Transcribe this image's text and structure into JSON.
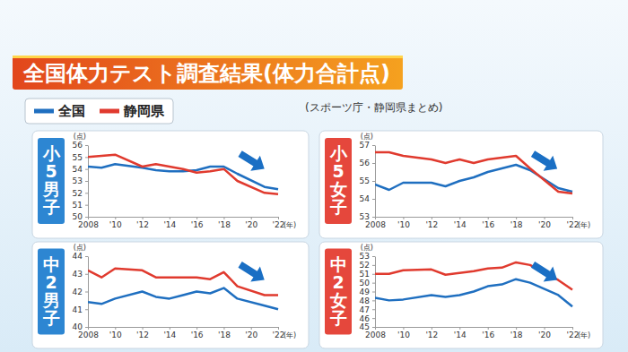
{
  "title": "全国体力テスト調査結果(体力合計点)",
  "subtitle": "(スポーツ庁・静岡県まとめ)",
  "chart_data": [
    {
      "type": "line",
      "title": "小5男子",
      "color": "#2d86d2",
      "legend": "top left",
      "y_label": "(点)",
      "x_label": "(年)",
      "x": [
        2008,
        2009,
        2010,
        2012,
        2013,
        2014,
        2015,
        2016,
        2017,
        2018,
        2019,
        2021,
        2022
      ],
      "xlim": [
        2008,
        2022
      ],
      "xticks": [
        2008,
        {
          "value": 2010,
          "label": "'10"
        },
        {
          "value": 2012,
          "label": "'12"
        },
        {
          "value": 2014,
          "label": "'14"
        },
        {
          "value": 2016,
          "label": "'16"
        },
        {
          "value": 2018,
          "label": "'18"
        },
        {
          "value": 2020,
          "label": "'20"
        },
        {
          "value": 2022,
          "label": "'22"
        }
      ],
      "ylim": [
        50,
        56
      ],
      "yticks": [
        50,
        51,
        52,
        53,
        54,
        55,
        56
      ],
      "series": [
        {
          "name": "全国",
          "color": "#1f6fc0",
          "values": [
            54.2,
            54.1,
            54.4,
            54.1,
            53.9,
            53.8,
            53.8,
            53.9,
            54.2,
            54.2,
            53.6,
            52.5,
            52.3
          ]
        },
        {
          "name": "静岡県",
          "color": "#e03a2e",
          "values": [
            55.0,
            55.1,
            55.2,
            54.2,
            54.4,
            54.2,
            54.0,
            53.7,
            53.8,
            54.0,
            53.0,
            52.0,
            51.9
          ]
        }
      ]
    },
    {
      "type": "line",
      "title": "小5女子",
      "color": "#e5473c",
      "y_label": "(点)",
      "x_label": "(年)",
      "x": [
        2008,
        2009,
        2010,
        2012,
        2013,
        2014,
        2015,
        2016,
        2017,
        2018,
        2019,
        2021,
        2022
      ],
      "xlim": [
        2008,
        2022
      ],
      "xticks": [
        2008,
        {
          "value": 2010,
          "label": "'10"
        },
        {
          "value": 2012,
          "label": "'12"
        },
        {
          "value": 2014,
          "label": "'14"
        },
        {
          "value": 2016,
          "label": "'16"
        },
        {
          "value": 2018,
          "label": "'18"
        },
        {
          "value": 2020,
          "label": "'20"
        },
        {
          "value": 2022,
          "label": "'22"
        }
      ],
      "ylim": [
        53,
        57
      ],
      "yticks": [
        53,
        54,
        55,
        56,
        57
      ],
      "series": [
        {
          "color": "#1f6fc0",
          "values": [
            54.8,
            54.5,
            54.9,
            54.9,
            54.7,
            55.0,
            55.2,
            55.5,
            55.7,
            55.9,
            55.6,
            54.6,
            54.4
          ]
        },
        {
          "color": "#e03a2e",
          "values": [
            56.6,
            56.6,
            56.4,
            56.2,
            56.0,
            56.2,
            56.0,
            56.2,
            56.3,
            56.4,
            55.7,
            54.4,
            54.3
          ]
        }
      ]
    },
    {
      "type": "line",
      "title": "中2男子",
      "color": "#2d86d2",
      "y_label": "(点)",
      "x_label": "(年)",
      "x": [
        2008,
        2009,
        2010,
        2012,
        2013,
        2014,
        2015,
        2016,
        2017,
        2018,
        2019,
        2021,
        2022
      ],
      "xlim": [
        2008,
        2022
      ],
      "xticks": [
        2008,
        {
          "value": 2010,
          "label": "'10"
        },
        {
          "value": 2012,
          "label": "'12"
        },
        {
          "value": 2014,
          "label": "'14"
        },
        {
          "value": 2016,
          "label": "'16"
        },
        {
          "value": 2018,
          "label": "'18"
        },
        {
          "value": 2020,
          "label": "'20"
        },
        {
          "value": 2022,
          "label": "'22"
        }
      ],
      "ylim": [
        40,
        44
      ],
      "yticks": [
        40,
        41,
        42,
        43,
        44
      ],
      "series": [
        {
          "color": "#1f6fc0",
          "values": [
            41.4,
            41.3,
            41.6,
            42.0,
            41.7,
            41.6,
            41.8,
            42.0,
            41.9,
            42.2,
            41.6,
            41.2,
            41.0
          ]
        },
        {
          "color": "#e03a2e",
          "values": [
            43.2,
            42.8,
            43.3,
            43.2,
            42.8,
            42.8,
            42.8,
            42.8,
            42.7,
            43.1,
            42.3,
            41.8,
            41.8
          ]
        }
      ]
    },
    {
      "type": "line",
      "title": "中2女子",
      "color": "#e5473c",
      "y_label": "(点)",
      "x_label": "(年)",
      "x": [
        2008,
        2009,
        2010,
        2012,
        2013,
        2014,
        2015,
        2016,
        2017,
        2018,
        2019,
        2021,
        2022
      ],
      "xlim": [
        2008,
        2022
      ],
      "xticks": [
        2008,
        {
          "value": 2010,
          "label": "'10"
        },
        {
          "value": 2012,
          "label": "'12"
        },
        {
          "value": 2014,
          "label": "'14"
        },
        {
          "value": 2016,
          "label": "'16"
        },
        {
          "value": 2018,
          "label": "'18"
        },
        {
          "value": 2020,
          "label": "'20"
        },
        {
          "value": 2022,
          "label": "'22"
        }
      ],
      "ylim": [
        45,
        53
      ],
      "yticks": [
        45,
        46,
        47,
        48,
        49,
        50,
        51,
        52,
        53
      ],
      "series": [
        {
          "color": "#1f6fc0",
          "values": [
            48.3,
            48.0,
            48.1,
            48.6,
            48.4,
            48.6,
            49.0,
            49.6,
            49.8,
            50.4,
            50.0,
            48.6,
            47.3
          ]
        },
        {
          "color": "#e03a2e",
          "values": [
            51.0,
            51.0,
            51.4,
            51.5,
            50.9,
            51.1,
            51.3,
            51.6,
            51.7,
            52.3,
            52.0,
            50.3,
            49.2
          ]
        }
      ]
    }
  ]
}
